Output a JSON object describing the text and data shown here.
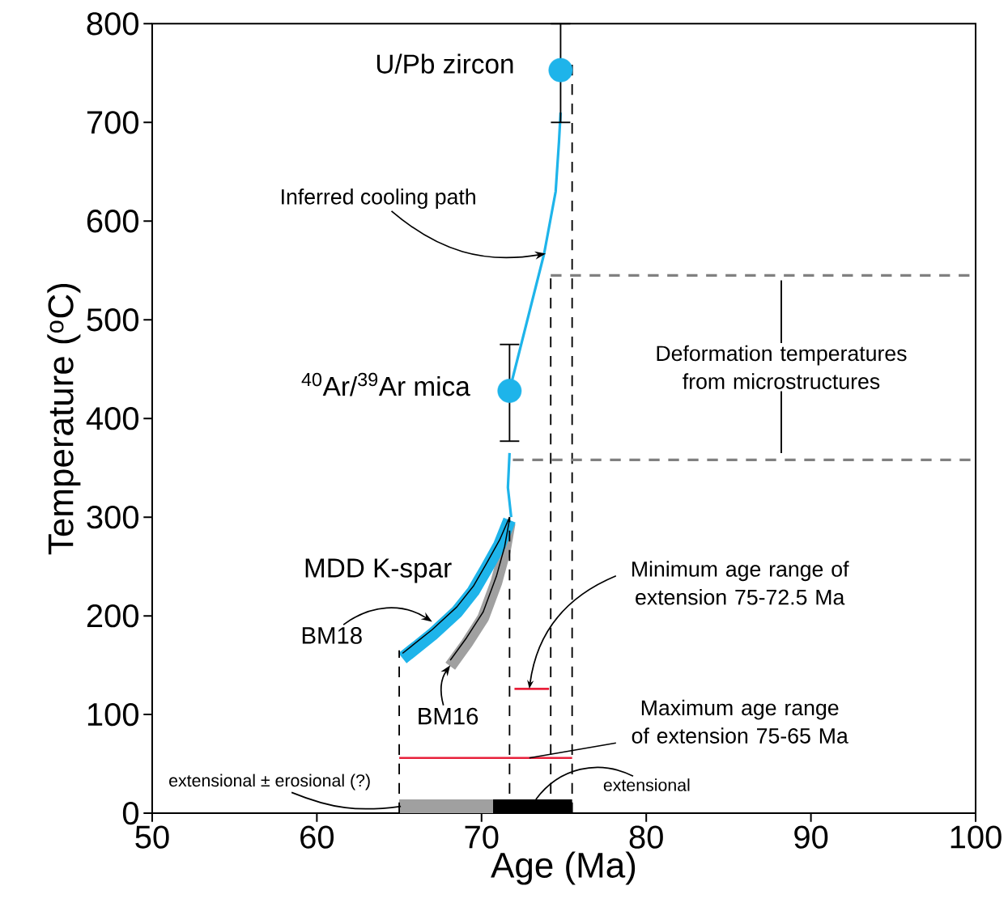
{
  "chart_data": {
    "type": "line",
    "xlabel": "Age (Ma)",
    "ylabel": "Temperature ($^{o}$C)",
    "xlim": [
      50,
      100
    ],
    "ylim": [
      0,
      800
    ],
    "xticks": [
      50,
      60,
      70,
      80,
      90,
      100
    ],
    "yticks": [
      0,
      100,
      200,
      300,
      400,
      500,
      600,
      700,
      800
    ],
    "grid": false,
    "series": [
      {
        "type": "area",
        "color": "#a0a0a0",
        "x": [
          65,
          70.7
        ],
        "values": [
          14,
          14
        ]
      },
      {
        "type": "area",
        "color": "#000000",
        "x": [
          70.7,
          75.5
        ],
        "values": [
          14,
          14
        ]
      },
      {
        "color": "#a0a0a0",
        "line_style": "solid",
        "x": [
          68.1,
          69.1,
          70.1,
          70.9,
          71.4,
          71.7
        ],
        "values": [
          149,
          172,
          198,
          234,
          265,
          294
        ]
      },
      {
        "color": "#1eb4ea",
        "line_style": "solid",
        "x": [
          65.2,
          67,
          68.5,
          69.5,
          70.3,
          71.1,
          71.7
        ],
        "values": [
          157,
          181,
          204,
          225,
          248,
          272,
          297
        ]
      },
      {
        "color": "#000000",
        "line_style": "solid",
        "x": [
          68.1,
          69.1,
          70.1,
          70.9,
          71.4,
          71.7
        ],
        "values": [
          155,
          178,
          204,
          240,
          270,
          298
        ]
      },
      {
        "color": "#000000",
        "line_style": "solid",
        "x": [
          65.2,
          67,
          68.5,
          69.5,
          70.3,
          71.1,
          71.7
        ],
        "values": [
          162,
          186,
          209,
          230,
          253,
          277,
          300
        ]
      },
      {
        "color": "#1eb4ea",
        "line_style": "solid",
        "x": [
          71.8,
          71.6,
          71.7
        ],
        "values": [
          300,
          330,
          365
        ]
      },
      {
        "color": "#1eb4ea",
        "line_style": "solid",
        "x": [
          71.8,
          73.8,
          74.5,
          74.7,
          74.8
        ],
        "values": [
          435,
          567,
          630,
          680,
          710
        ]
      },
      {
        "color": "#000000",
        "line_style": "dashed",
        "x": [
          65,
          65
        ],
        "values": [
          0,
          165
        ]
      },
      {
        "color": "#000000",
        "line_style": "dashed",
        "x": [
          71.7,
          71.7
        ],
        "values": [
          0,
          300
        ]
      },
      {
        "color": "#000000",
        "line_style": "dashed",
        "x": [
          74.2,
          74.2
        ],
        "values": [
          0,
          545
        ]
      },
      {
        "color": "#000000",
        "line_style": "dashed",
        "x": [
          75.5,
          75.5
        ],
        "values": [
          0,
          760
        ]
      },
      {
        "color": "#808080",
        "line_style": "dashed",
        "x": [
          74.2,
          100
        ],
        "values": [
          545,
          545
        ]
      },
      {
        "color": "#808080",
        "line_style": "dashed",
        "x": [
          71.9,
          100
        ],
        "values": [
          358,
          358
        ]
      },
      {
        "color": "#000000",
        "line_style": "solid",
        "x": [
          88.2,
          88.2
        ],
        "values": [
          365,
          540
        ]
      },
      {
        "color": "#e8203a",
        "line_style": "solid",
        "x": [
          72.0,
          74.1
        ],
        "values": [
          126,
          126
        ]
      },
      {
        "color": "#e8203a",
        "line_style": "solid",
        "x": [
          65,
          75.5
        ],
        "values": [
          56,
          56
        ]
      },
      {
        "type": "scatter",
        "color": "#1eb4ea",
        "marker": "circle",
        "x": [
          74.8
        ],
        "values": [
          753
        ],
        "errors": [
          [
            700,
            800
          ]
        ]
      },
      {
        "type": "scatter",
        "color": "#1eb4ea",
        "marker": "circle",
        "x": [
          71.7
        ],
        "values": [
          428
        ],
        "errors": [
          [
            377,
            475
          ]
        ]
      }
    ],
    "annotations": [
      {
        "text": "Inferred cooling path",
        "x": 73.9,
        "y": 567
      },
      "MDD K-spar",
      {
        "text": "BM18",
        "x": 67.0,
        "y": 194
      },
      {
        "text": "BM16",
        "x": 68.1,
        "y": 150
      },
      {
        "text": "Minimum age range of extension 75-72.5 Ma",
        "x": 72.9,
        "y": 126
      },
      {
        "text": "Maximum age range of extension 75-65 Ma",
        "x": 72.9,
        "y": 56
      },
      {
        "text": "extensional ± erosional (?)",
        "x": 65.1,
        "y": 7
      },
      {
        "text": "extensional",
        "x": 73.3,
        "y": 14
      },
      {
        "text": "Deformation temperatures from microstructures",
        "x": 88.2,
        "y": 452
      },
      {
        "text": "U/Pb zircon",
        "x": 74.8,
        "y": 753
      },
      {
        "text": "$^{40}$Ar/$^{39}$Ar mica",
        "x": 71.7,
        "y": 428
      }
    ]
  }
}
